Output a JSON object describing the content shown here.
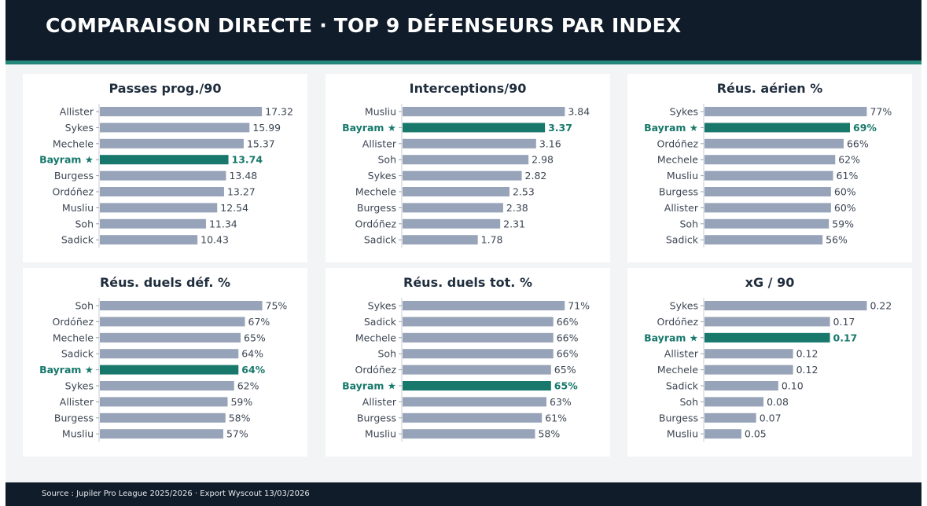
{
  "header": {
    "title": "COMPARAISON DIRECTE  ·  TOP 9 DÉFENSEURS PAR INDEX"
  },
  "footer": {
    "source": "Source : Jupiler Pro League 2025/2026 · Export Wyscout 13/03/2026"
  },
  "colors": {
    "header_bg": "#111c2a",
    "accent": "#23877a",
    "bar_default": "#97a3b8",
    "bar_highlight": "#17786b",
    "label_default": "#3d4654",
    "label_highlight": "#17786b",
    "title": "#1f2d3d"
  },
  "chart_data": [
    {
      "type": "bar",
      "orientation": "horizontal",
      "title": "Passes prog./90",
      "highlight": "Bayram ★",
      "categories": [
        "Allister",
        "Sykes",
        "Mechele",
        "Bayram ★",
        "Burgess",
        "Ordóñez",
        "Musliu",
        "Soh",
        "Sadick"
      ],
      "values": [
        17.32,
        15.99,
        15.37,
        13.74,
        13.48,
        13.27,
        12.54,
        11.34,
        10.43
      ],
      "value_labels": [
        "17.32",
        "15.99",
        "15.37",
        "13.74",
        "13.48",
        "13.27",
        "12.54",
        "11.34",
        "10.43"
      ],
      "xlim": [
        0,
        20.5
      ]
    },
    {
      "type": "bar",
      "orientation": "horizontal",
      "title": "Interceptions/90",
      "highlight": "Bayram ★",
      "categories": [
        "Musliu",
        "Bayram ★",
        "Allister",
        "Soh",
        "Sykes",
        "Mechele",
        "Burgess",
        "Ordóñez",
        "Sadick"
      ],
      "values": [
        3.84,
        3.37,
        3.16,
        2.98,
        2.82,
        2.53,
        2.38,
        2.31,
        1.78
      ],
      "value_labels": [
        "3.84",
        "3.37",
        "3.16",
        "2.98",
        "2.82",
        "2.53",
        "2.38",
        "2.31",
        "1.78"
      ],
      "xlim": [
        0,
        4.54
      ]
    },
    {
      "type": "bar",
      "orientation": "horizontal",
      "title": "Réus. aérien %",
      "highlight": "Bayram ★",
      "categories": [
        "Sykes",
        "Bayram ★",
        "Ordóñez",
        "Mechele",
        "Musliu",
        "Burgess",
        "Allister",
        "Soh",
        "Sadick"
      ],
      "values": [
        77,
        69,
        66,
        62,
        61,
        60,
        60,
        59,
        56
      ],
      "value_labels": [
        "77%",
        "69%",
        "66%",
        "62%",
        "61%",
        "60%",
        "60%",
        "59%",
        "56%"
      ],
      "xlim": [
        0,
        91
      ]
    },
    {
      "type": "bar",
      "orientation": "horizontal",
      "title": "Réus. duels déf. %",
      "highlight": "Bayram ★",
      "categories": [
        "Soh",
        "Ordóñez",
        "Mechele",
        "Sadick",
        "Bayram ★",
        "Sykes",
        "Allister",
        "Burgess",
        "Musliu"
      ],
      "values": [
        75,
        67,
        65,
        64,
        64,
        62,
        59,
        58,
        57
      ],
      "value_labels": [
        "75%",
        "67%",
        "65%",
        "64%",
        "64%",
        "62%",
        "59%",
        "58%",
        "57%"
      ],
      "xlim": [
        0,
        88.6
      ]
    },
    {
      "type": "bar",
      "orientation": "horizontal",
      "title": "Réus. duels tot. %",
      "highlight": "Bayram ★",
      "categories": [
        "Sykes",
        "Sadick",
        "Mechele",
        "Soh",
        "Ordóñez",
        "Bayram ★",
        "Allister",
        "Burgess",
        "Musliu"
      ],
      "values": [
        71,
        66,
        66,
        66,
        65,
        65,
        63,
        61,
        58
      ],
      "value_labels": [
        "71%",
        "66%",
        "66%",
        "66%",
        "65%",
        "65%",
        "63%",
        "61%",
        "58%"
      ],
      "xlim": [
        0,
        84
      ]
    },
    {
      "type": "bar",
      "orientation": "horizontal",
      "title": "xG / 90",
      "highlight": "Bayram ★",
      "categories": [
        "Sykes",
        "Ordóñez",
        "Bayram ★",
        "Allister",
        "Mechele",
        "Sadick",
        "Soh",
        "Burgess",
        "Musliu"
      ],
      "values": [
        0.22,
        0.17,
        0.17,
        0.12,
        0.12,
        0.1,
        0.08,
        0.07,
        0.05
      ],
      "value_labels": [
        "0.22",
        "0.17",
        "0.17",
        "0.12",
        "0.12",
        "0.10",
        "0.08",
        "0.07",
        "0.05"
      ],
      "xlim": [
        0,
        0.26
      ]
    }
  ]
}
